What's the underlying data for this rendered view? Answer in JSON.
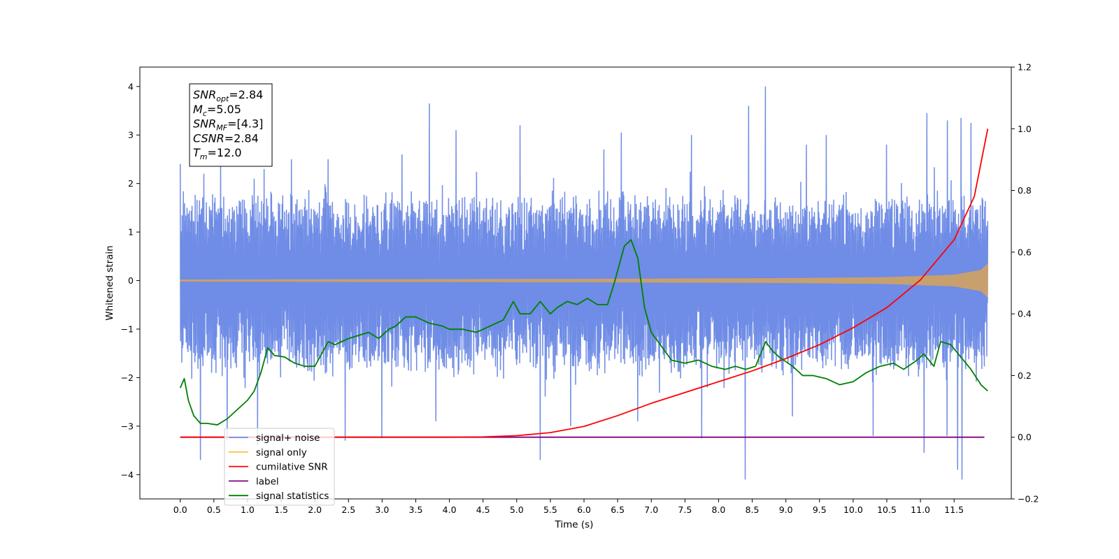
{
  "chart_data": {
    "type": "line",
    "xlabel": "Time (s)",
    "ylabel": "Whitened strain",
    "xlim": [
      -0.6,
      12.35
    ],
    "ylim": [
      -4.5,
      4.4
    ],
    "y2lim": [
      -0.2,
      1.2
    ],
    "xticks": [
      "0.0",
      "0.5",
      "1.0",
      "1.5",
      "2.0",
      "2.5",
      "3.0",
      "3.5",
      "4.0",
      "4.5",
      "5.0",
      "5.5",
      "6.0",
      "6.5",
      "7.0",
      "7.5",
      "8.0",
      "8.5",
      "9.0",
      "9.5",
      "10.0",
      "10.5",
      "11.0",
      "11.5"
    ],
    "yticks": [
      "4",
      "3",
      "2",
      "1",
      "0",
      "−1",
      "−2",
      "−3",
      "−4"
    ],
    "y2ticks": [
      "1.2",
      "1.0",
      "0.8",
      "0.6",
      "0.4",
      "0.2",
      "0.0",
      "−0.2"
    ],
    "annotation": {
      "lines": [
        {
          "sym": "SNR",
          "sub": "opt",
          "val": "=2.84"
        },
        {
          "sym": "M",
          "sub": "c",
          "val": "=5.05"
        },
        {
          "sym": "SNR",
          "sub": "MF",
          "val": "=[4.3]"
        },
        {
          "sym": "CSNR",
          "sub": "",
          "val": "=2.84"
        },
        {
          "sym": "T",
          "sub": "m",
          "val": "=12.0"
        }
      ]
    },
    "legend": {
      "position": "lower-left",
      "entries": [
        {
          "label": "signal+ noise",
          "color": "#6f8ce6"
        },
        {
          "label": "signal only",
          "color": "#ffc04d"
        },
        {
          "label": "cumilative SNR",
          "color": "#ff0000"
        },
        {
          "label": "label",
          "color": "#800080"
        },
        {
          "label": "signal statistics",
          "color": "#008000"
        }
      ]
    },
    "series": [
      {
        "name": "signal+ noise",
        "axis": "left",
        "color": "#6f8ce6",
        "style": "noise",
        "x_range": [
          0.0,
          12.0
        ],
        "upper_typical": 1.6,
        "lower_typical": -1.7,
        "peaks_high": [
          [
            0.0,
            2.4
          ],
          [
            0.1,
            1.5
          ],
          [
            0.35,
            2.2
          ],
          [
            0.6,
            2.6
          ],
          [
            1.1,
            2.1
          ],
          [
            1.25,
            2.3
          ],
          [
            1.65,
            2.5
          ],
          [
            2.2,
            2.5
          ],
          [
            3.3,
            2.6
          ],
          [
            3.7,
            3.65
          ],
          [
            4.1,
            3.1
          ],
          [
            5.05,
            3.2
          ],
          [
            6.3,
            2.7
          ],
          [
            6.55,
            3.05
          ],
          [
            7.6,
            3.0
          ],
          [
            8.45,
            3.6
          ],
          [
            8.7,
            4.0
          ],
          [
            9.3,
            2.8
          ],
          [
            9.6,
            3.0
          ],
          [
            10.5,
            2.8
          ],
          [
            11.1,
            3.45
          ],
          [
            11.4,
            3.3
          ],
          [
            11.6,
            3.35
          ],
          [
            11.75,
            3.25
          ]
        ],
        "peaks_low": [
          [
            0.3,
            -3.7
          ],
          [
            0.7,
            -3.3
          ],
          [
            1.15,
            -3.4
          ],
          [
            2.45,
            -3.3
          ],
          [
            3.0,
            -3.25
          ],
          [
            3.8,
            -2.9
          ],
          [
            5.35,
            -3.7
          ],
          [
            5.8,
            -3.0
          ],
          [
            6.8,
            -2.9
          ],
          [
            7.75,
            -3.25
          ],
          [
            8.4,
            -4.1
          ],
          [
            9.1,
            -2.8
          ],
          [
            10.3,
            -3.2
          ],
          [
            11.05,
            -3.55
          ],
          [
            11.4,
            -3.2
          ],
          [
            11.55,
            -3.9
          ],
          [
            11.62,
            -4.1
          ]
        ]
      },
      {
        "name": "signal only",
        "axis": "left",
        "color": "#c8a06e",
        "style": "chirp",
        "x_range": [
          0.0,
          12.0
        ],
        "envelope": [
          [
            0.0,
            0.02
          ],
          [
            6.0,
            0.035
          ],
          [
            9.0,
            0.05
          ],
          [
            10.5,
            0.07
          ],
          [
            11.5,
            0.12
          ],
          [
            11.9,
            0.22
          ],
          [
            12.0,
            0.35
          ]
        ]
      },
      {
        "name": "cumilative SNR",
        "axis": "right",
        "color": "#ff0000",
        "x": [
          0.0,
          1.0,
          2.0,
          3.0,
          4.0,
          4.5,
          5.0,
          5.5,
          6.0,
          6.5,
          7.0,
          7.5,
          8.0,
          8.5,
          9.0,
          9.5,
          10.0,
          10.5,
          11.0,
          11.5,
          11.8,
          12.0
        ],
        "y": [
          0.0,
          0.0,
          0.0,
          0.0,
          0.0,
          0.001,
          0.005,
          0.015,
          0.035,
          0.07,
          0.11,
          0.145,
          0.18,
          0.215,
          0.255,
          0.3,
          0.355,
          0.42,
          0.51,
          0.64,
          0.78,
          1.0
        ]
      },
      {
        "name": "label",
        "axis": "right",
        "color": "#800080",
        "x": [
          0.0,
          11.95
        ],
        "y": [
          0.0,
          0.0
        ]
      },
      {
        "name": "signal statistics",
        "axis": "right",
        "color": "#008000",
        "x": [
          0.0,
          0.06,
          0.12,
          0.2,
          0.3,
          0.4,
          0.55,
          0.7,
          1.0,
          1.1,
          1.2,
          1.3,
          1.4,
          1.55,
          1.7,
          1.85,
          2.0,
          2.2,
          2.3,
          2.4,
          2.5,
          2.65,
          2.8,
          2.95,
          3.1,
          3.2,
          3.35,
          3.5,
          3.7,
          3.9,
          4.0,
          4.2,
          4.4,
          4.6,
          4.8,
          4.95,
          5.05,
          5.2,
          5.35,
          5.5,
          5.6,
          5.75,
          5.9,
          6.05,
          6.2,
          6.35,
          6.45,
          6.6,
          6.7,
          6.8,
          6.9,
          7.0,
          7.1,
          7.3,
          7.5,
          7.7,
          7.9,
          8.1,
          8.25,
          8.4,
          8.55,
          8.7,
          8.8,
          8.9,
          9.1,
          9.25,
          9.4,
          9.6,
          9.8,
          10.0,
          10.2,
          10.4,
          10.6,
          10.75,
          10.95,
          11.05,
          11.2,
          11.3,
          11.45,
          11.6,
          11.75,
          11.9,
          12.0
        ],
        "y": [
          0.16,
          0.19,
          0.12,
          0.07,
          0.045,
          0.045,
          0.04,
          0.06,
          0.12,
          0.15,
          0.21,
          0.29,
          0.265,
          0.26,
          0.24,
          0.23,
          0.23,
          0.31,
          0.3,
          0.31,
          0.32,
          0.33,
          0.34,
          0.32,
          0.35,
          0.36,
          0.39,
          0.39,
          0.37,
          0.36,
          0.35,
          0.35,
          0.34,
          0.36,
          0.38,
          0.44,
          0.4,
          0.4,
          0.44,
          0.4,
          0.42,
          0.44,
          0.43,
          0.45,
          0.43,
          0.43,
          0.5,
          0.62,
          0.64,
          0.58,
          0.42,
          0.34,
          0.31,
          0.25,
          0.24,
          0.25,
          0.23,
          0.22,
          0.23,
          0.22,
          0.23,
          0.31,
          0.28,
          0.26,
          0.23,
          0.2,
          0.2,
          0.19,
          0.17,
          0.18,
          0.21,
          0.23,
          0.24,
          0.22,
          0.25,
          0.27,
          0.23,
          0.31,
          0.3,
          0.26,
          0.22,
          0.17,
          0.15
        ]
      }
    ]
  }
}
